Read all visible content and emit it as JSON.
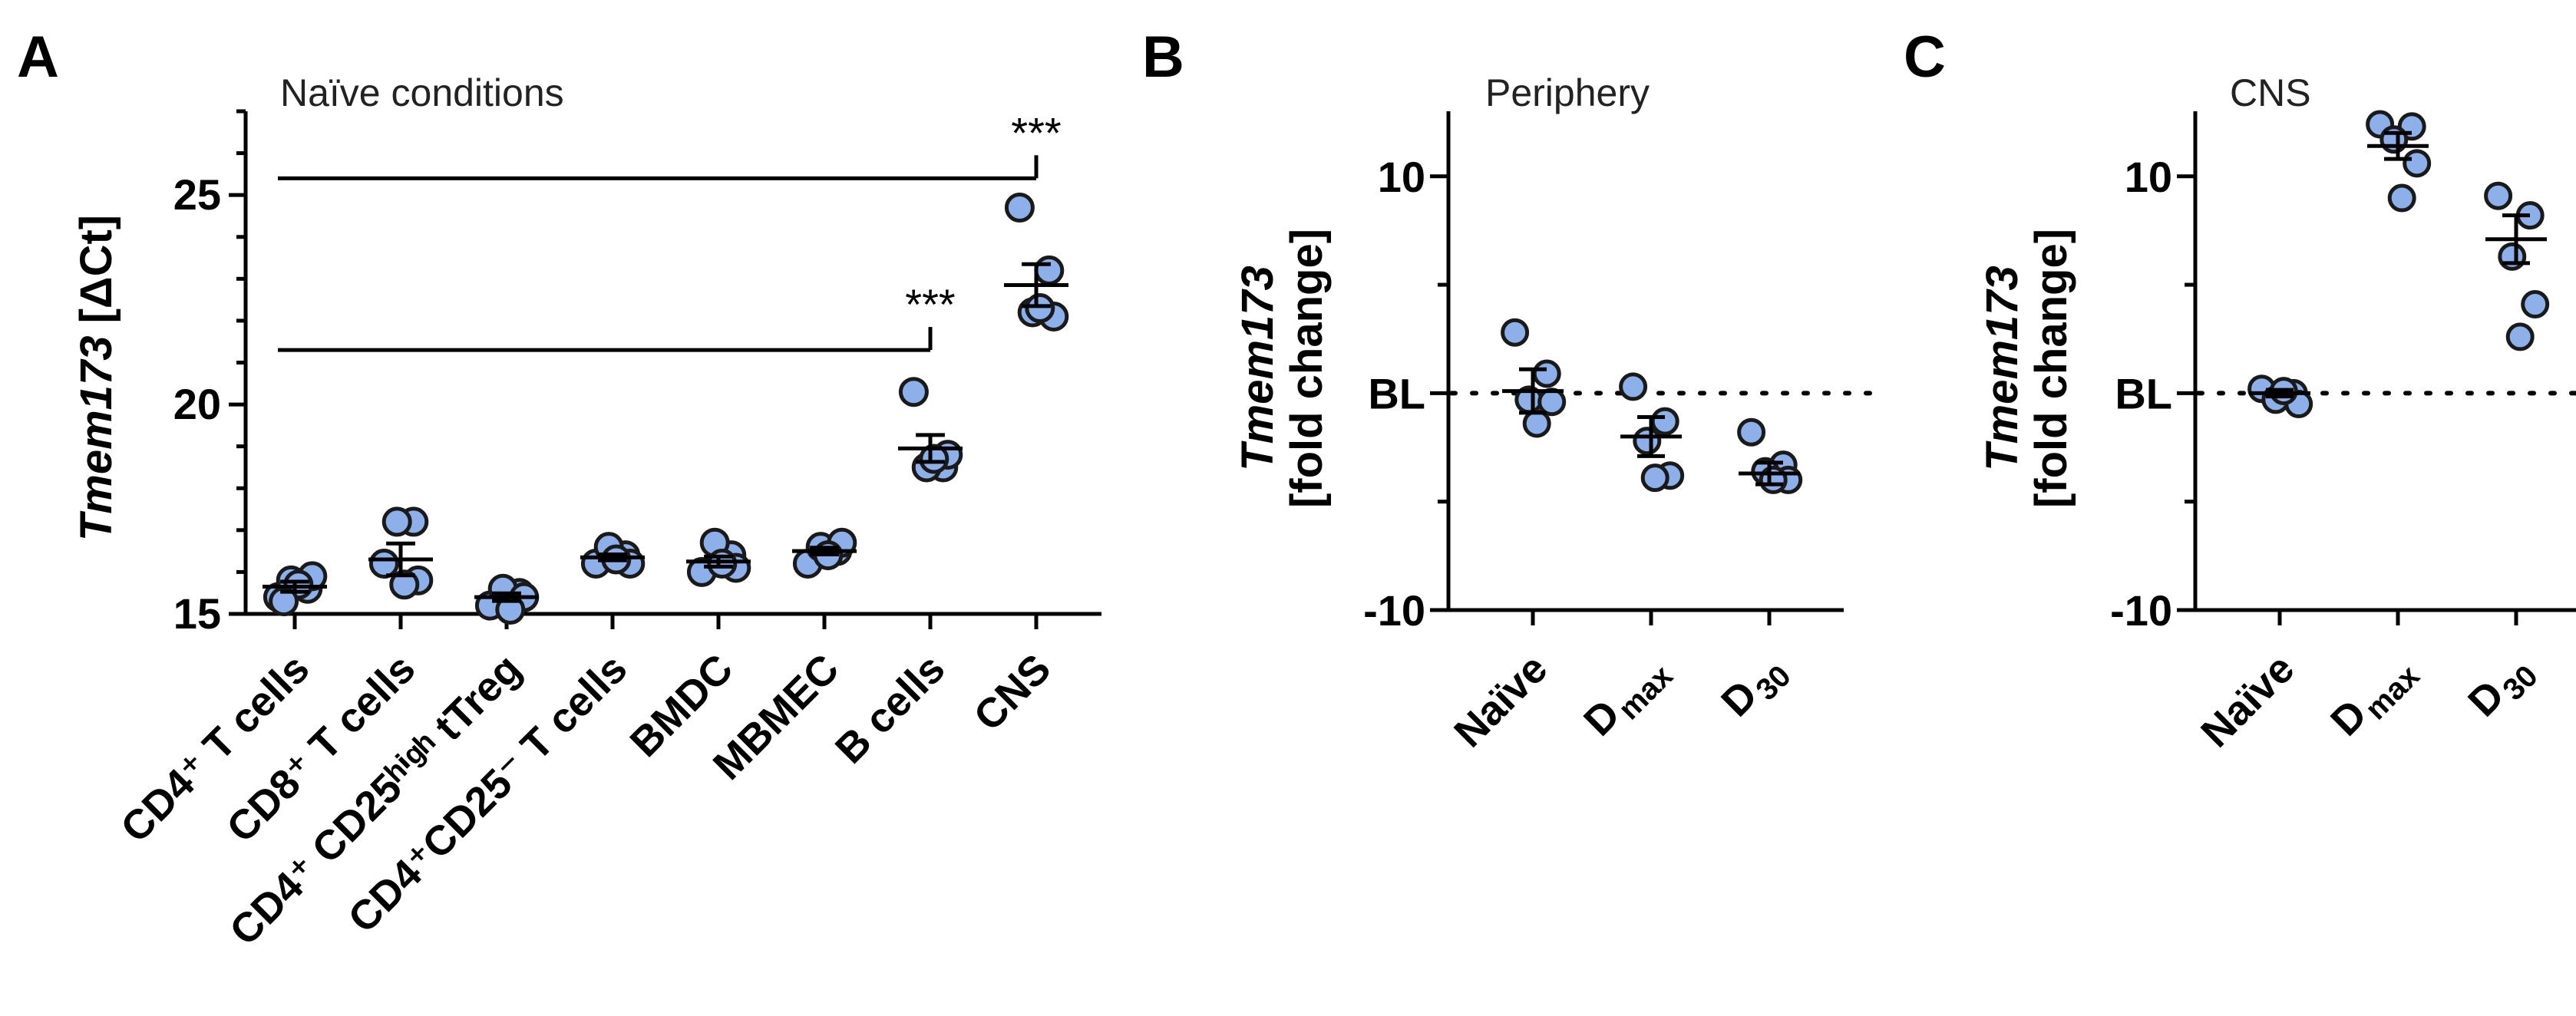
{
  "chart_data": [
    {
      "type": "scatter",
      "panel": "A",
      "title": "Naïve conditions",
      "ylabel_italic": "Tmem173",
      "ylabel_rest": " [ΔCt]",
      "ylim": [
        15,
        27
      ],
      "yticks": [
        15,
        20,
        25
      ],
      "categories": [
        {
          "label": "CD4⁺ T cells"
        },
        {
          "label": "CD8⁺ T cells"
        },
        {
          "label": "CD4⁺ CD25ʰⁱᵍʰ tTreg"
        },
        {
          "label": "CD4⁺CD25⁻ T cells"
        },
        {
          "label": "BMDC"
        },
        {
          "label": "MBMEC"
        },
        {
          "label": "B cells"
        },
        {
          "label": "CNS"
        }
      ],
      "points": [
        [
          15.4,
          15.6,
          15.8,
          15.9,
          15.7,
          15.3
        ],
        [
          16.2,
          17.2,
          17.2,
          15.8,
          15.7
        ],
        [
          15.2,
          15.5,
          15.6,
          15.4,
          15.1
        ],
        [
          16.2,
          16.4,
          16.6,
          16.2,
          16.3
        ],
        [
          16.0,
          16.4,
          16.7,
          16.1,
          16.2
        ],
        [
          16.2,
          16.5,
          16.6,
          16.7,
          16.4
        ],
        [
          20.3,
          18.5,
          18.5,
          18.8,
          18.7
        ],
        [
          24.7,
          23.2,
          22.2,
          22.1,
          22.3
        ]
      ],
      "means": [
        15.65,
        16.3,
        15.4,
        16.35,
        16.25,
        16.5,
        18.95,
        22.85
      ],
      "sems": [
        0.12,
        0.38,
        0.09,
        0.07,
        0.12,
        0.08,
        0.32,
        0.5
      ],
      "comparisons": [
        {
          "from": "CD4⁺ T cells",
          "to": "B cells",
          "y": 21.3,
          "label": "***"
        },
        {
          "from": "CD4⁺ T cells",
          "to": "CNS",
          "y": 25.4,
          "label": "***"
        }
      ]
    },
    {
      "type": "scatter",
      "panel": "B",
      "title": "Periphery",
      "ylabel_italic": "Tmem173",
      "ylabel_rest": "[fold change]",
      "ylim": [
        -10,
        13
      ],
      "yticks": [
        {
          "value": 10,
          "label": "10"
        },
        {
          "value": 0,
          "label": "BL"
        },
        {
          "value": -10,
          "label": "-10"
        }
      ],
      "baseline": 0,
      "categories": [
        {
          "main": "Naïve",
          "sub": ""
        },
        {
          "main": "D",
          "sub": "max"
        },
        {
          "main": "D",
          "sub": "30"
        }
      ],
      "points": [
        [
          2.8,
          0.9,
          -0.3,
          -0.4,
          -1.4
        ],
        [
          0.3,
          -1.3,
          -2.2,
          -3.8,
          -3.9
        ],
        [
          -1.8,
          -3.3,
          -3.6,
          -4.0,
          -4.0
        ]
      ],
      "means": [
        0.1,
        -2.0,
        -3.7
      ],
      "sems": [
        1.0,
        0.9,
        0.5
      ]
    },
    {
      "type": "scatter",
      "panel": "C",
      "title": "CNS",
      "ylabel_italic": "Tmem173",
      "ylabel_rest": "[fold change]",
      "ylim": [
        -10,
        13
      ],
      "yticks": [
        {
          "value": 10,
          "label": "10"
        },
        {
          "value": 0,
          "label": "BL"
        },
        {
          "value": -10,
          "label": "-10"
        }
      ],
      "baseline": 0,
      "categories": [
        {
          "main": "Naïve",
          "sub": ""
        },
        {
          "main": "D",
          "sub": "max"
        },
        {
          "main": "D",
          "sub": "30"
        }
      ],
      "points": [
        [
          0.2,
          0.0,
          -0.3,
          -0.5,
          0.1
        ],
        [
          12.4,
          12.3,
          11.7,
          10.6,
          9.0
        ],
        [
          9.1,
          8.2,
          6.3,
          4.1,
          2.6
        ]
      ],
      "means": [
        0.0,
        11.4,
        7.1
      ],
      "sems": [
        0.15,
        0.6,
        1.1
      ]
    }
  ]
}
